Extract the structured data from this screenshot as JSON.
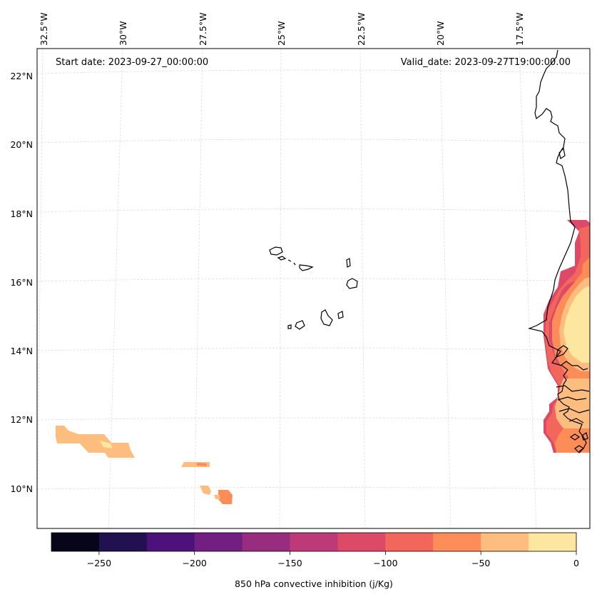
{
  "header": {
    "start_date": "Start date: 2023-09-27_00:00:00",
    "valid_date": "Valid_date: 2023-09-27T19:00:00.00"
  },
  "map": {
    "lon_labels": [
      "32.5°W",
      "30°W",
      "27.5°W",
      "25°W",
      "22.5°W",
      "20°W",
      "17.5°W"
    ],
    "lat_labels": [
      "22°N",
      "20°N",
      "18°N",
      "16°N",
      "14°N",
      "12°N",
      "10°N"
    ]
  },
  "colorbar": {
    "ticks": [
      "−250",
      "−200",
      "−150",
      "−100",
      "−50",
      "0"
    ],
    "label": "850 hPa convective inhibition (j/Kg)",
    "colors": [
      "#06051a",
      "#221150",
      "#4d117b",
      "#721f81",
      "#982d80",
      "#bd3977",
      "#dd4a68",
      "#f2665c",
      "#fc8d59",
      "#fdbd7f",
      "#fde7a0"
    ]
  }
}
